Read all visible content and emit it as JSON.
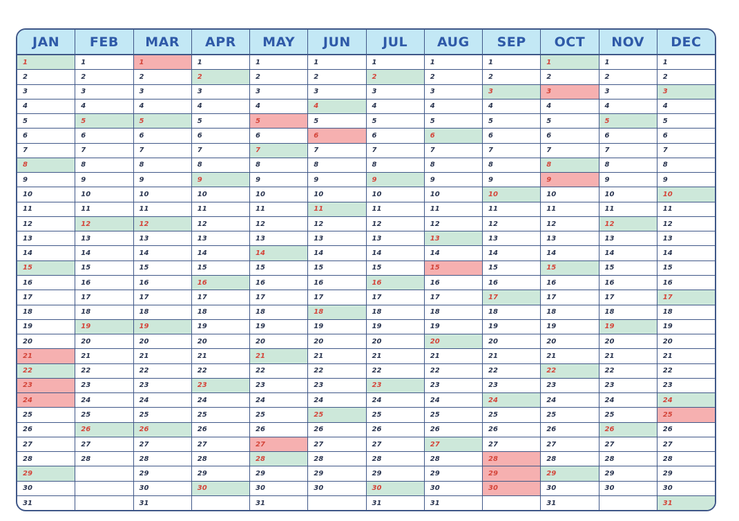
{
  "months": [
    {
      "name": "JAN",
      "days": 31,
      "green": [
        1,
        8,
        15,
        22,
        29
      ],
      "red": [
        21,
        23,
        24
      ]
    },
    {
      "name": "FEB",
      "days": 28,
      "green": [
        5,
        12,
        19,
        26
      ],
      "red": []
    },
    {
      "name": "MAR",
      "days": 31,
      "green": [
        5,
        12,
        19,
        26
      ],
      "red": [
        1
      ]
    },
    {
      "name": "APR",
      "days": 30,
      "green": [
        2,
        9,
        16,
        23,
        30
      ],
      "red": []
    },
    {
      "name": "MAY",
      "days": 31,
      "green": [
        7,
        14,
        21,
        28
      ],
      "red": [
        5,
        27
      ]
    },
    {
      "name": "JUN",
      "days": 30,
      "green": [
        4,
        11,
        18,
        25
      ],
      "red": [
        6
      ]
    },
    {
      "name": "JUL",
      "days": 31,
      "green": [
        2,
        9,
        16,
        23,
        30
      ],
      "red": []
    },
    {
      "name": "AUG",
      "days": 31,
      "green": [
        6,
        13,
        20,
        27
      ],
      "red": [
        15
      ]
    },
    {
      "name": "SEP",
      "days": 30,
      "green": [
        3,
        10,
        17,
        24
      ],
      "red": [
        28,
        29,
        30
      ]
    },
    {
      "name": "OCT",
      "days": 31,
      "green": [
        1,
        8,
        15,
        22,
        29
      ],
      "red": [
        3,
        9
      ]
    },
    {
      "name": "NOV",
      "days": 30,
      "green": [
        5,
        12,
        19,
        26
      ],
      "red": []
    },
    {
      "name": "DEC",
      "days": 31,
      "green": [
        3,
        10,
        17,
        24,
        31
      ],
      "red": [
        25
      ]
    }
  ],
  "colors": {
    "header_bg": "#c3e8f5",
    "header_text": "#2f5aa8",
    "grid_line": "#3e5687",
    "highlight_green": "#cde8da",
    "highlight_red": "#f6b0b0",
    "highlight_text": "#d4453a",
    "day_text": "#2a3550"
  }
}
